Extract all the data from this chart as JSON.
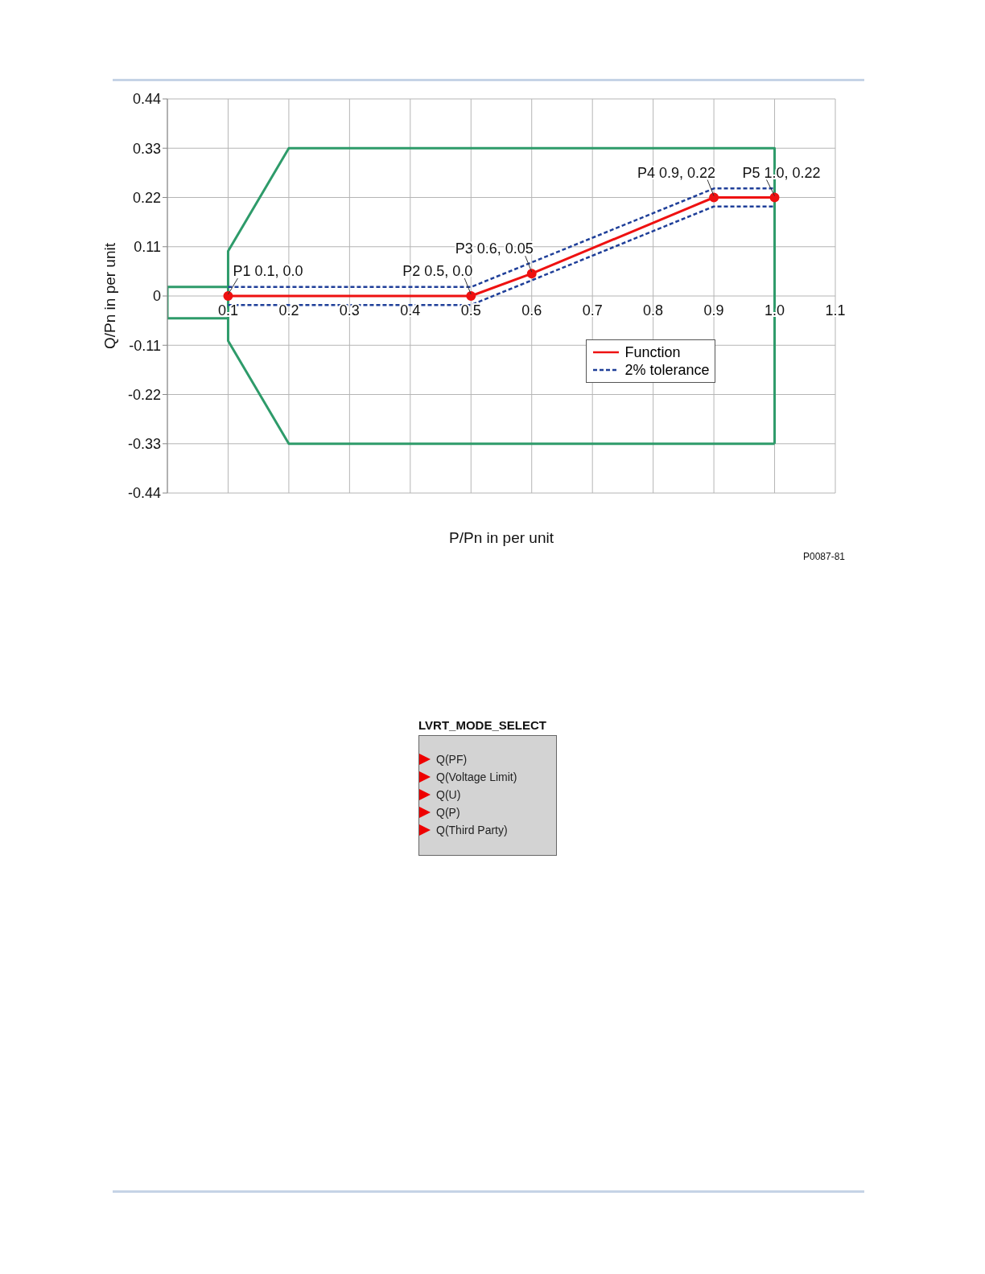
{
  "chart_data": [
    {
      "type": "line",
      "xlabel": "P/Pn in per unit",
      "ylabel": "Q/Pn in per unit",
      "xlim": [
        0,
        1.1
      ],
      "ylim": [
        -0.44,
        0.44
      ],
      "xticks": [
        {
          "value": 0,
          "label": null
        },
        0.1,
        0.2,
        0.3,
        0.4,
        0.5,
        0.6,
        0.7,
        0.8,
        0.9,
        {
          "value": 1,
          "label": "1.0"
        },
        1.1
      ],
      "yticks": [
        -0.44,
        -0.33,
        -0.22,
        -0.11,
        0,
        0.11,
        0.22,
        0.33,
        0.44
      ],
      "grid": true,
      "legend": "bottom right",
      "line_style": "solid",
      "series": [
        {
          "color": "#2e9b6a",
          "marker": "none",
          "x": [
            0,
            0.1,
            0.1,
            0.2,
            1.0,
            1.0
          ],
          "values": [
            0.02,
            0.02,
            0.1,
            0.33,
            0.33,
            -0.33
          ]
        },
        {
          "color": "#2e9b6a",
          "marker": "none",
          "x": [
            0,
            0,
            0.1,
            0.1,
            0.2,
            1.0
          ],
          "values": [
            0.02,
            -0.05,
            -0.05,
            -0.1,
            -0.33,
            -0.33
          ]
        },
        {
          "color": "#2e9b6a",
          "marker": "none",
          "x": [
            0.1,
            0.1
          ],
          "values": [
            0.02,
            -0.05
          ]
        },
        {
          "name": "2% tolerance",
          "color": "#1f3f99",
          "line_style": "dashed",
          "marker": "none",
          "x": [
            0.1,
            0.5,
            0.9,
            1.0
          ],
          "values": [
            0.02,
            0.02,
            0.24,
            0.24
          ]
        },
        {
          "color": "#1f3f99",
          "line_style": "dashed",
          "marker": "none",
          "x": [
            0.1,
            0.5,
            0.9,
            1.0
          ],
          "values": [
            -0.02,
            -0.02,
            0.2,
            0.2
          ]
        },
        {
          "name": "Function",
          "color": "#ee1111",
          "marker": "circle",
          "x": [
            0.1,
            0.5,
            0.6,
            0.9,
            1.0
          ],
          "values": [
            0,
            0,
            0.05,
            0.22,
            0.22
          ]
        }
      ],
      "annotations": [
        {
          "text": "P1 0.1, 0.0",
          "x": 0.1,
          "y": 0
        },
        {
          "text": "P2 0.5, 0.0",
          "x": 0.5,
          "y": 0
        },
        {
          "text": "P3 0.6, 0.05",
          "x": 0.6,
          "y": 0.05
        },
        {
          "text": "P4 0.9, 0.22",
          "x": 0.9,
          "y": 0.22
        },
        {
          "text": "P5 1.0, 0.22",
          "x": 1.0,
          "y": 0.22
        },
        "P0087-81"
      ]
    },
    {
      "type": "other",
      "title": "LVRT_MODE_SELECT",
      "annotations": [
        "Q(PF)",
        "Q(Voltage Limit)",
        "Q(U)",
        "Q(P)",
        "Q(Third Party)"
      ]
    }
  ]
}
